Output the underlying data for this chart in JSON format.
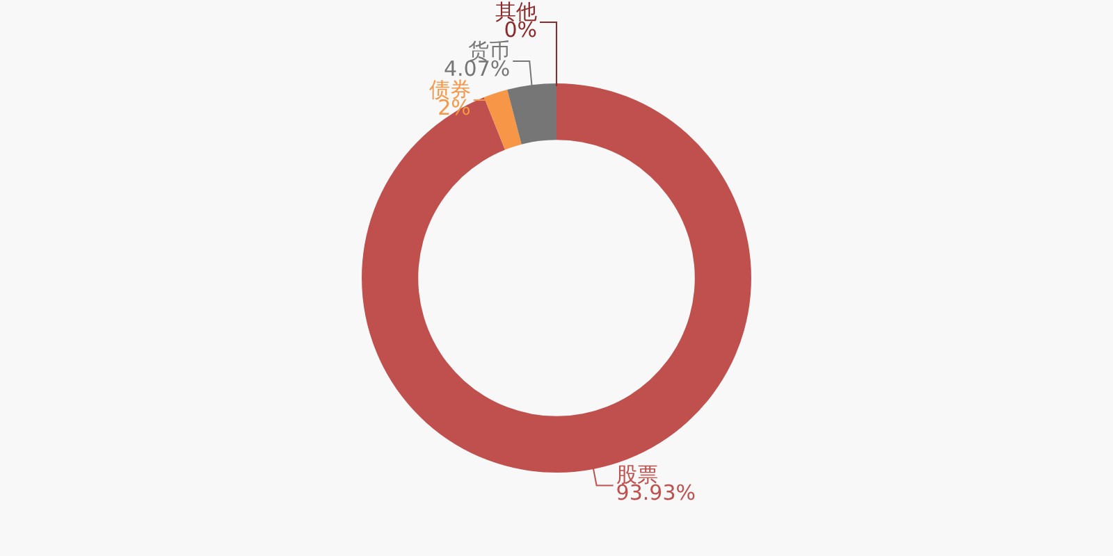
{
  "chart_data": {
    "type": "donut",
    "categories": [
      "股票",
      "债券",
      "货币",
      "其他"
    ],
    "values": [
      93.93,
      2,
      4.07,
      0
    ],
    "value_labels": [
      "93.93%",
      "2%",
      "4.07%",
      "0%"
    ],
    "colors": [
      "#c0504d",
      "#f79646",
      "#767676",
      "#8b2a2a"
    ],
    "legend": false
  }
}
